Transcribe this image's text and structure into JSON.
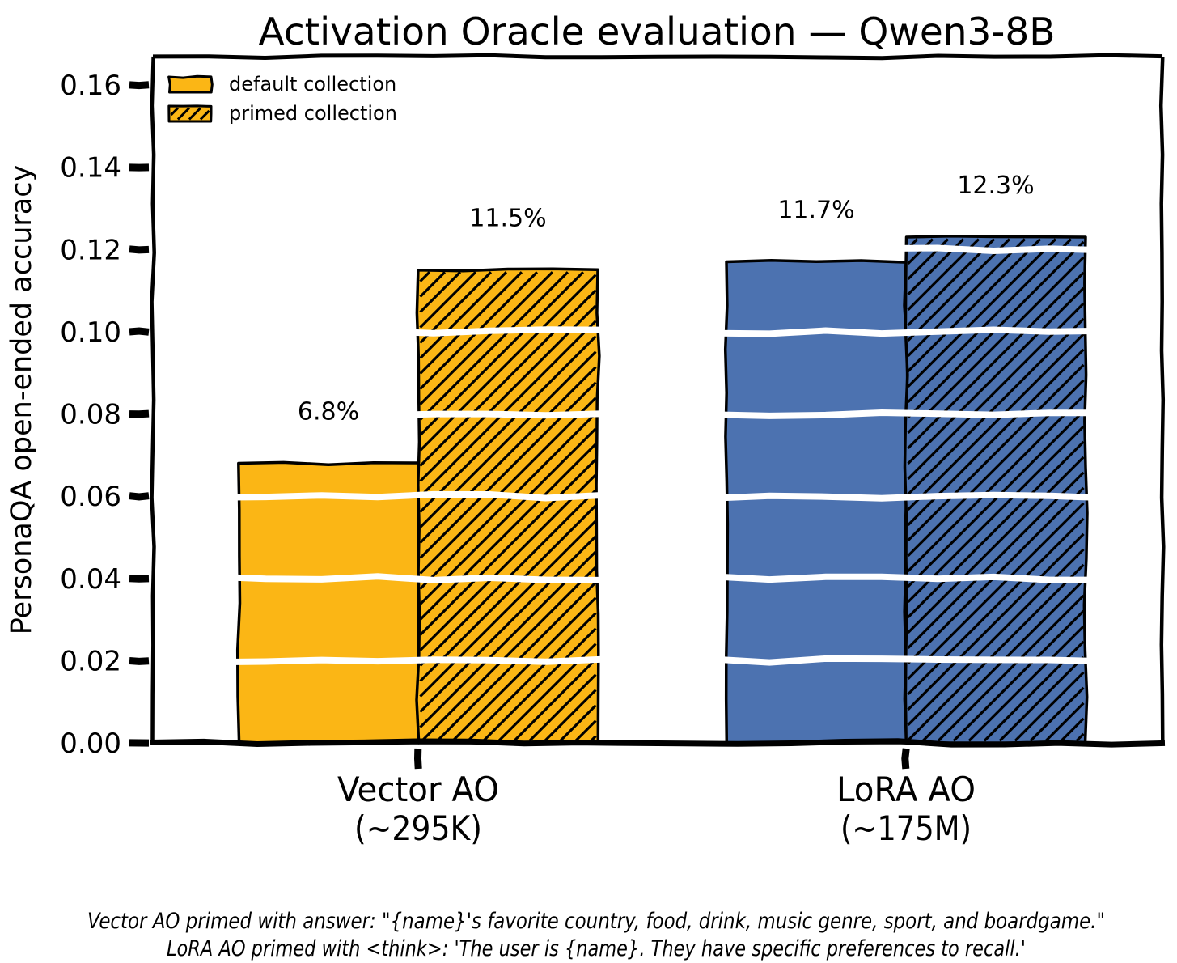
{
  "chart_data": {
    "type": "bar",
    "style": "xkcd-hand-drawn",
    "title": "Activation Oracle evaluation — Qwen3-8B",
    "ylabel": "PersonaQA open-ended accuracy",
    "xlabel": "",
    "ylim": [
      0,
      0.167
    ],
    "ytick_step": 0.02,
    "yticks": [
      "0.00",
      "0.02",
      "0.04",
      "0.06",
      "0.08",
      "0.10",
      "0.12",
      "0.14",
      "0.16"
    ],
    "grid": "white horizontal gridlines drawn over bars at each y tick",
    "categories": [
      {
        "line1": "Vector AO",
        "line2": "(~295K)",
        "color": "#FBB615"
      },
      {
        "line1": "LoRA AO",
        "line2": "(~175M)",
        "color": "#4C72B0"
      }
    ],
    "series": [
      {
        "name": "default collection",
        "hatch": false,
        "values": [
          0.068,
          0.117
        ],
        "value_labels": [
          "6.8%",
          "11.7%"
        ]
      },
      {
        "name": "primed collection",
        "hatch": true,
        "values": [
          0.115,
          0.123
        ],
        "value_labels": [
          "11.5%",
          "12.3%"
        ]
      }
    ],
    "legend": {
      "position": "upper-left",
      "swatch_color": "#FBB615",
      "entries": [
        {
          "label": "default collection",
          "hatch": false
        },
        {
          "label": "primed collection",
          "hatch": true
        }
      ]
    },
    "colors": {
      "vector_orange": "#FBB615",
      "lora_blue": "#4C72B0",
      "bar_edge": "#000000",
      "gridline_white": "#FFFFFF",
      "text_black": "#000000"
    },
    "footnote": [
      "Vector AO primed with answer: \"{name}'s favorite country, food, drink, music genre, sport, and boardgame.\"",
      "LoRA AO primed with <think>: 'The user is {name}. They have specific preferences to recall.'"
    ]
  }
}
